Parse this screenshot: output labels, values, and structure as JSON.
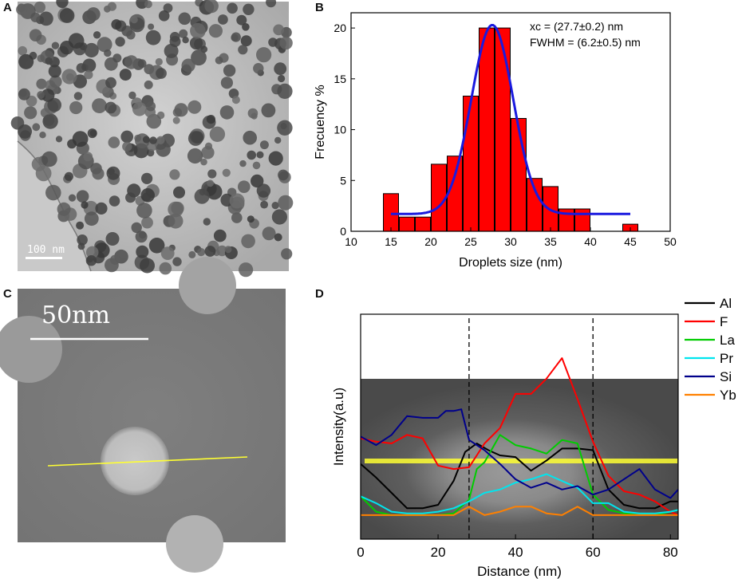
{
  "panels": {
    "a": {
      "letter": "A",
      "scale_label": "100 nm"
    },
    "b": {
      "letter": "B"
    },
    "c": {
      "letter": "C",
      "scale_label": "50nm"
    },
    "d": {
      "letter": "D"
    }
  },
  "colors": {
    "bar_fill": "#ff0000",
    "fit_line": "#1a1adf",
    "scan_line": "#ffff33"
  },
  "chart_data": [
    {
      "type": "bar",
      "title": "",
      "xlabel": "Droplets size (nm)",
      "ylabel": "Frecuency %",
      "xlim": [
        10,
        50
      ],
      "ylim": [
        0,
        21.5
      ],
      "xticks": [
        10,
        15,
        20,
        25,
        30,
        35,
        40,
        45,
        50
      ],
      "yticks": [
        0,
        5,
        10,
        15,
        20
      ],
      "bin_width": 1.9,
      "bars": [
        {
          "x": 15,
          "value": 3.7
        },
        {
          "x": 17,
          "value": 1.4
        },
        {
          "x": 19,
          "value": 1.4
        },
        {
          "x": 21,
          "value": 6.6
        },
        {
          "x": 23,
          "value": 7.4
        },
        {
          "x": 25,
          "value": 13.3
        },
        {
          "x": 27,
          "value": 20.0
        },
        {
          "x": 29,
          "value": 20.0
        },
        {
          "x": 31,
          "value": 11.1
        },
        {
          "x": 33,
          "value": 5.2
        },
        {
          "x": 35,
          "value": 4.4
        },
        {
          "x": 37,
          "value": 2.2
        },
        {
          "x": 39,
          "value": 2.2
        },
        {
          "x": 45,
          "value": 0.7
        }
      ],
      "fit": {
        "type": "gaussian",
        "xc": 27.7,
        "fwhm": 6.2,
        "baseline": 1.7,
        "peak": 20.3,
        "x_range": [
          15,
          45
        ]
      },
      "annotations": [
        "xc = (27.7±0.2) nm",
        "FWHM = (6.2±0.5) nm"
      ]
    },
    {
      "type": "line",
      "title": "",
      "xlabel": "Distance (nm)",
      "ylabel": "Intensity(a.u)",
      "xlim": [
        0,
        82
      ],
      "ylim": [
        0,
        1
      ],
      "xticks": [
        0,
        20,
        40,
        60,
        80
      ],
      "vlines": [
        28,
        60
      ],
      "legend_position": "right",
      "series": [
        {
          "name": "Al",
          "color": "#000000",
          "x": [
            0,
            4,
            8,
            12,
            16,
            20,
            24,
            27,
            30,
            33,
            36,
            40,
            44,
            48,
            52,
            56,
            60,
            64,
            68,
            72,
            76,
            80,
            82
          ],
          "y": [
            0.31,
            0.23,
            0.14,
            0.05,
            0.05,
            0.07,
            0.21,
            0.38,
            0.43,
            0.39,
            0.36,
            0.35,
            0.27,
            0.33,
            0.4,
            0.4,
            0.39,
            0.16,
            0.07,
            0.05,
            0.05,
            0.09,
            0.09
          ]
        },
        {
          "name": "F",
          "color": "#ff0000",
          "x": [
            0,
            4,
            8,
            12,
            16,
            20,
            24,
            28,
            32,
            36,
            40,
            44,
            48,
            52,
            56,
            60,
            64,
            68,
            72,
            76,
            80,
            82
          ],
          "y": [
            0.46,
            0.44,
            0.43,
            0.48,
            0.46,
            0.3,
            0.28,
            0.29,
            0.43,
            0.52,
            0.72,
            0.72,
            0.81,
            0.93,
            0.69,
            0.44,
            0.24,
            0.15,
            0.13,
            0.09,
            0.03,
            0.01
          ]
        },
        {
          "name": "La",
          "color": "#00cc00",
          "x": [
            0,
            4,
            8,
            12,
            16,
            20,
            24,
            28,
            30,
            32,
            36,
            40,
            44,
            48,
            52,
            56,
            60,
            64,
            68,
            72,
            76,
            80,
            82
          ],
          "y": [
            0.12,
            0.03,
            0.01,
            0.01,
            0.01,
            0.01,
            0.02,
            0.1,
            0.28,
            0.32,
            0.48,
            0.42,
            0.4,
            0.37,
            0.45,
            0.43,
            0.13,
            0.04,
            0.02,
            0.02,
            0.01,
            0.03,
            0.04
          ]
        },
        {
          "name": "Pr",
          "color": "#00e5ee",
          "x": [
            0,
            4,
            8,
            12,
            16,
            20,
            24,
            28,
            32,
            36,
            40,
            44,
            48,
            52,
            56,
            60,
            64,
            68,
            72,
            76,
            80,
            82
          ],
          "y": [
            0.12,
            0.08,
            0.03,
            0.02,
            0.02,
            0.03,
            0.05,
            0.09,
            0.14,
            0.16,
            0.2,
            0.22,
            0.25,
            0.21,
            0.17,
            0.08,
            0.08,
            0.03,
            0.02,
            0.02,
            0.03,
            0.04
          ]
        },
        {
          "name": "Si",
          "color": "#00008b",
          "x": [
            0,
            4,
            8,
            12,
            16,
            20,
            22,
            24,
            26,
            28,
            32,
            36,
            40,
            44,
            48,
            52,
            56,
            60,
            64,
            68,
            72,
            76,
            80,
            82
          ],
          "y": [
            0.47,
            0.42,
            0.48,
            0.59,
            0.58,
            0.58,
            0.62,
            0.62,
            0.63,
            0.45,
            0.39,
            0.31,
            0.22,
            0.17,
            0.2,
            0.16,
            0.18,
            0.13,
            0.16,
            0.22,
            0.28,
            0.16,
            0.11,
            0.16
          ]
        },
        {
          "name": "Yb",
          "color": "#ff8000",
          "x": [
            0,
            4,
            8,
            12,
            16,
            20,
            24,
            28,
            32,
            36,
            40,
            44,
            48,
            52,
            56,
            60,
            64,
            68,
            72,
            76,
            80,
            82
          ],
          "y": [
            0.01,
            0.01,
            0.01,
            0.01,
            0.01,
            0.01,
            0.01,
            0.06,
            0.01,
            0.03,
            0.06,
            0.06,
            0.02,
            0.01,
            0.06,
            0.01,
            0.01,
            0.01,
            0.01,
            0.01,
            0.01,
            0.01
          ]
        }
      ]
    }
  ]
}
